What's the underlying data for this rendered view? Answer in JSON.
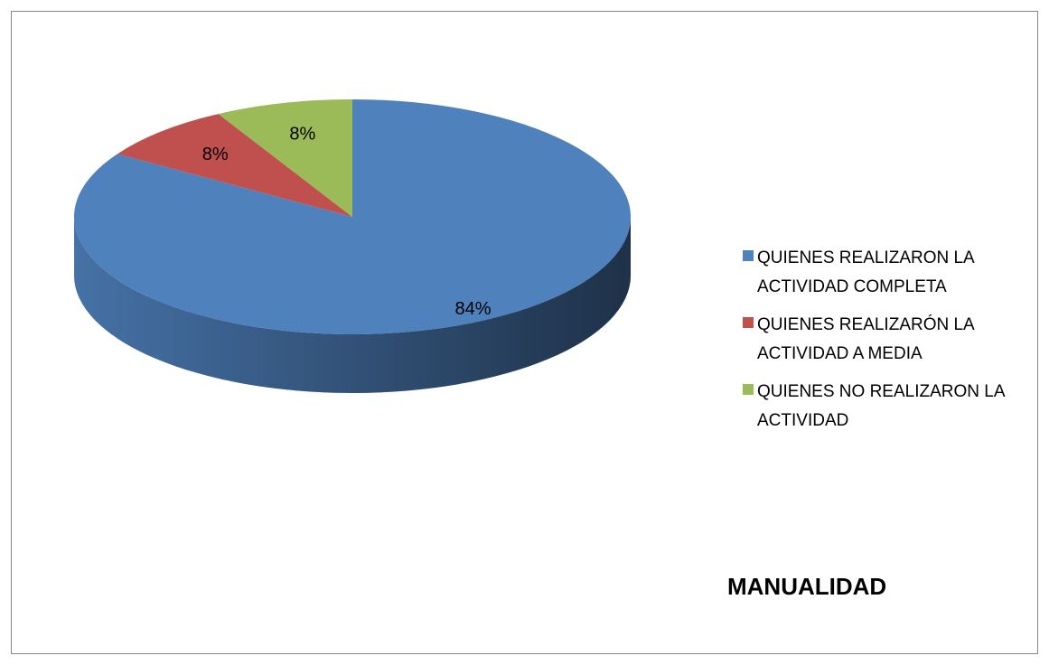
{
  "chart_data": {
    "type": "pie3d",
    "title": "MANUALIDAD",
    "categories": [
      "QUIENES REALIZARON LA ACTIVIDAD COMPLETA",
      "QUIENES REALIZARÓN LA ACTIVIDAD A MEDIA",
      "QUIENES NO REALIZARON LA ACTIVIDAD"
    ],
    "values": [
      84,
      8,
      8
    ],
    "value_labels": [
      "84%",
      "8%",
      "8%"
    ],
    "colors": [
      "#4f81bd",
      "#c0504d",
      "#9bbb59"
    ],
    "legend": "right"
  }
}
